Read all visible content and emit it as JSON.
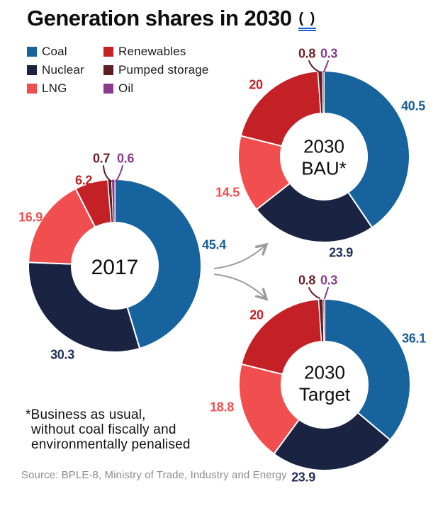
{
  "title": {
    "text": "Generation shares in 2030",
    "suffix": "( )"
  },
  "legend": {
    "items": [
      {
        "label": "Coal",
        "color": "#17639d"
      },
      {
        "label": "Nuclear",
        "color": "#1a2342"
      },
      {
        "label": "LNG",
        "color": "#f14f4f"
      },
      {
        "label": "Renewables",
        "color": "#c42127"
      },
      {
        "label": "Pumped storage",
        "color": "#5e1f24"
      },
      {
        "label": "Oil",
        "color": "#8a3a8c"
      }
    ]
  },
  "footnote": {
    "lines": [
      "*Business as usual,",
      "without coal fiscally and",
      "environmentally penalised"
    ]
  },
  "source": {
    "text": "Source: BPLE-8, Ministry of Trade, Industry and Energy"
  },
  "colors": {
    "title": "#0d0d0d",
    "accent_underline": "#1c5ed8",
    "arrow": "#9b9b9b",
    "source_text": "#8c8c8c",
    "slice_gap": "#ffffff"
  },
  "chart_data": {
    "type": "pie",
    "subtype": "donut",
    "units": "%",
    "title": "Generation shares in 2030 ( )",
    "legend_position": "top-left",
    "categories": [
      "Coal",
      "Nuclear",
      "LNG",
      "Renewables",
      "Pumped storage",
      "Oil"
    ],
    "palette": [
      "#17639d",
      "#1a2342",
      "#f14f4f",
      "#c42127",
      "#5e1f24",
      "#8a3a8c"
    ],
    "label_colors": [
      "#175e96",
      "#222f58",
      "#f14f4f",
      "#c42127",
      "#6b2127",
      "#8a3a8c"
    ],
    "charts": [
      {
        "id": "2017",
        "center_label": [
          "2017"
        ],
        "values": [
          45.4,
          30.3,
          16.9,
          6.2,
          0.7,
          0.6
        ],
        "value_labels": [
          "45.4",
          "30.3",
          "16.9",
          "6.2",
          "0.7",
          "0.6"
        ]
      },
      {
        "id": "2030-bau",
        "center_label": [
          "2030",
          "BAU*"
        ],
        "values": [
          40.5,
          23.9,
          14.5,
          20,
          0.8,
          0.3
        ],
        "value_labels": [
          "40.5",
          "23.9",
          "14.5",
          "20",
          "0.8",
          "0.3"
        ]
      },
      {
        "id": "2030-target",
        "center_label": [
          "2030",
          "Target"
        ],
        "values": [
          36.1,
          23.9,
          18.8,
          20,
          0.8,
          0.3
        ],
        "value_labels": [
          "36.1",
          "23.9",
          "18.8",
          "20",
          "0.8",
          "0.3"
        ]
      }
    ]
  }
}
